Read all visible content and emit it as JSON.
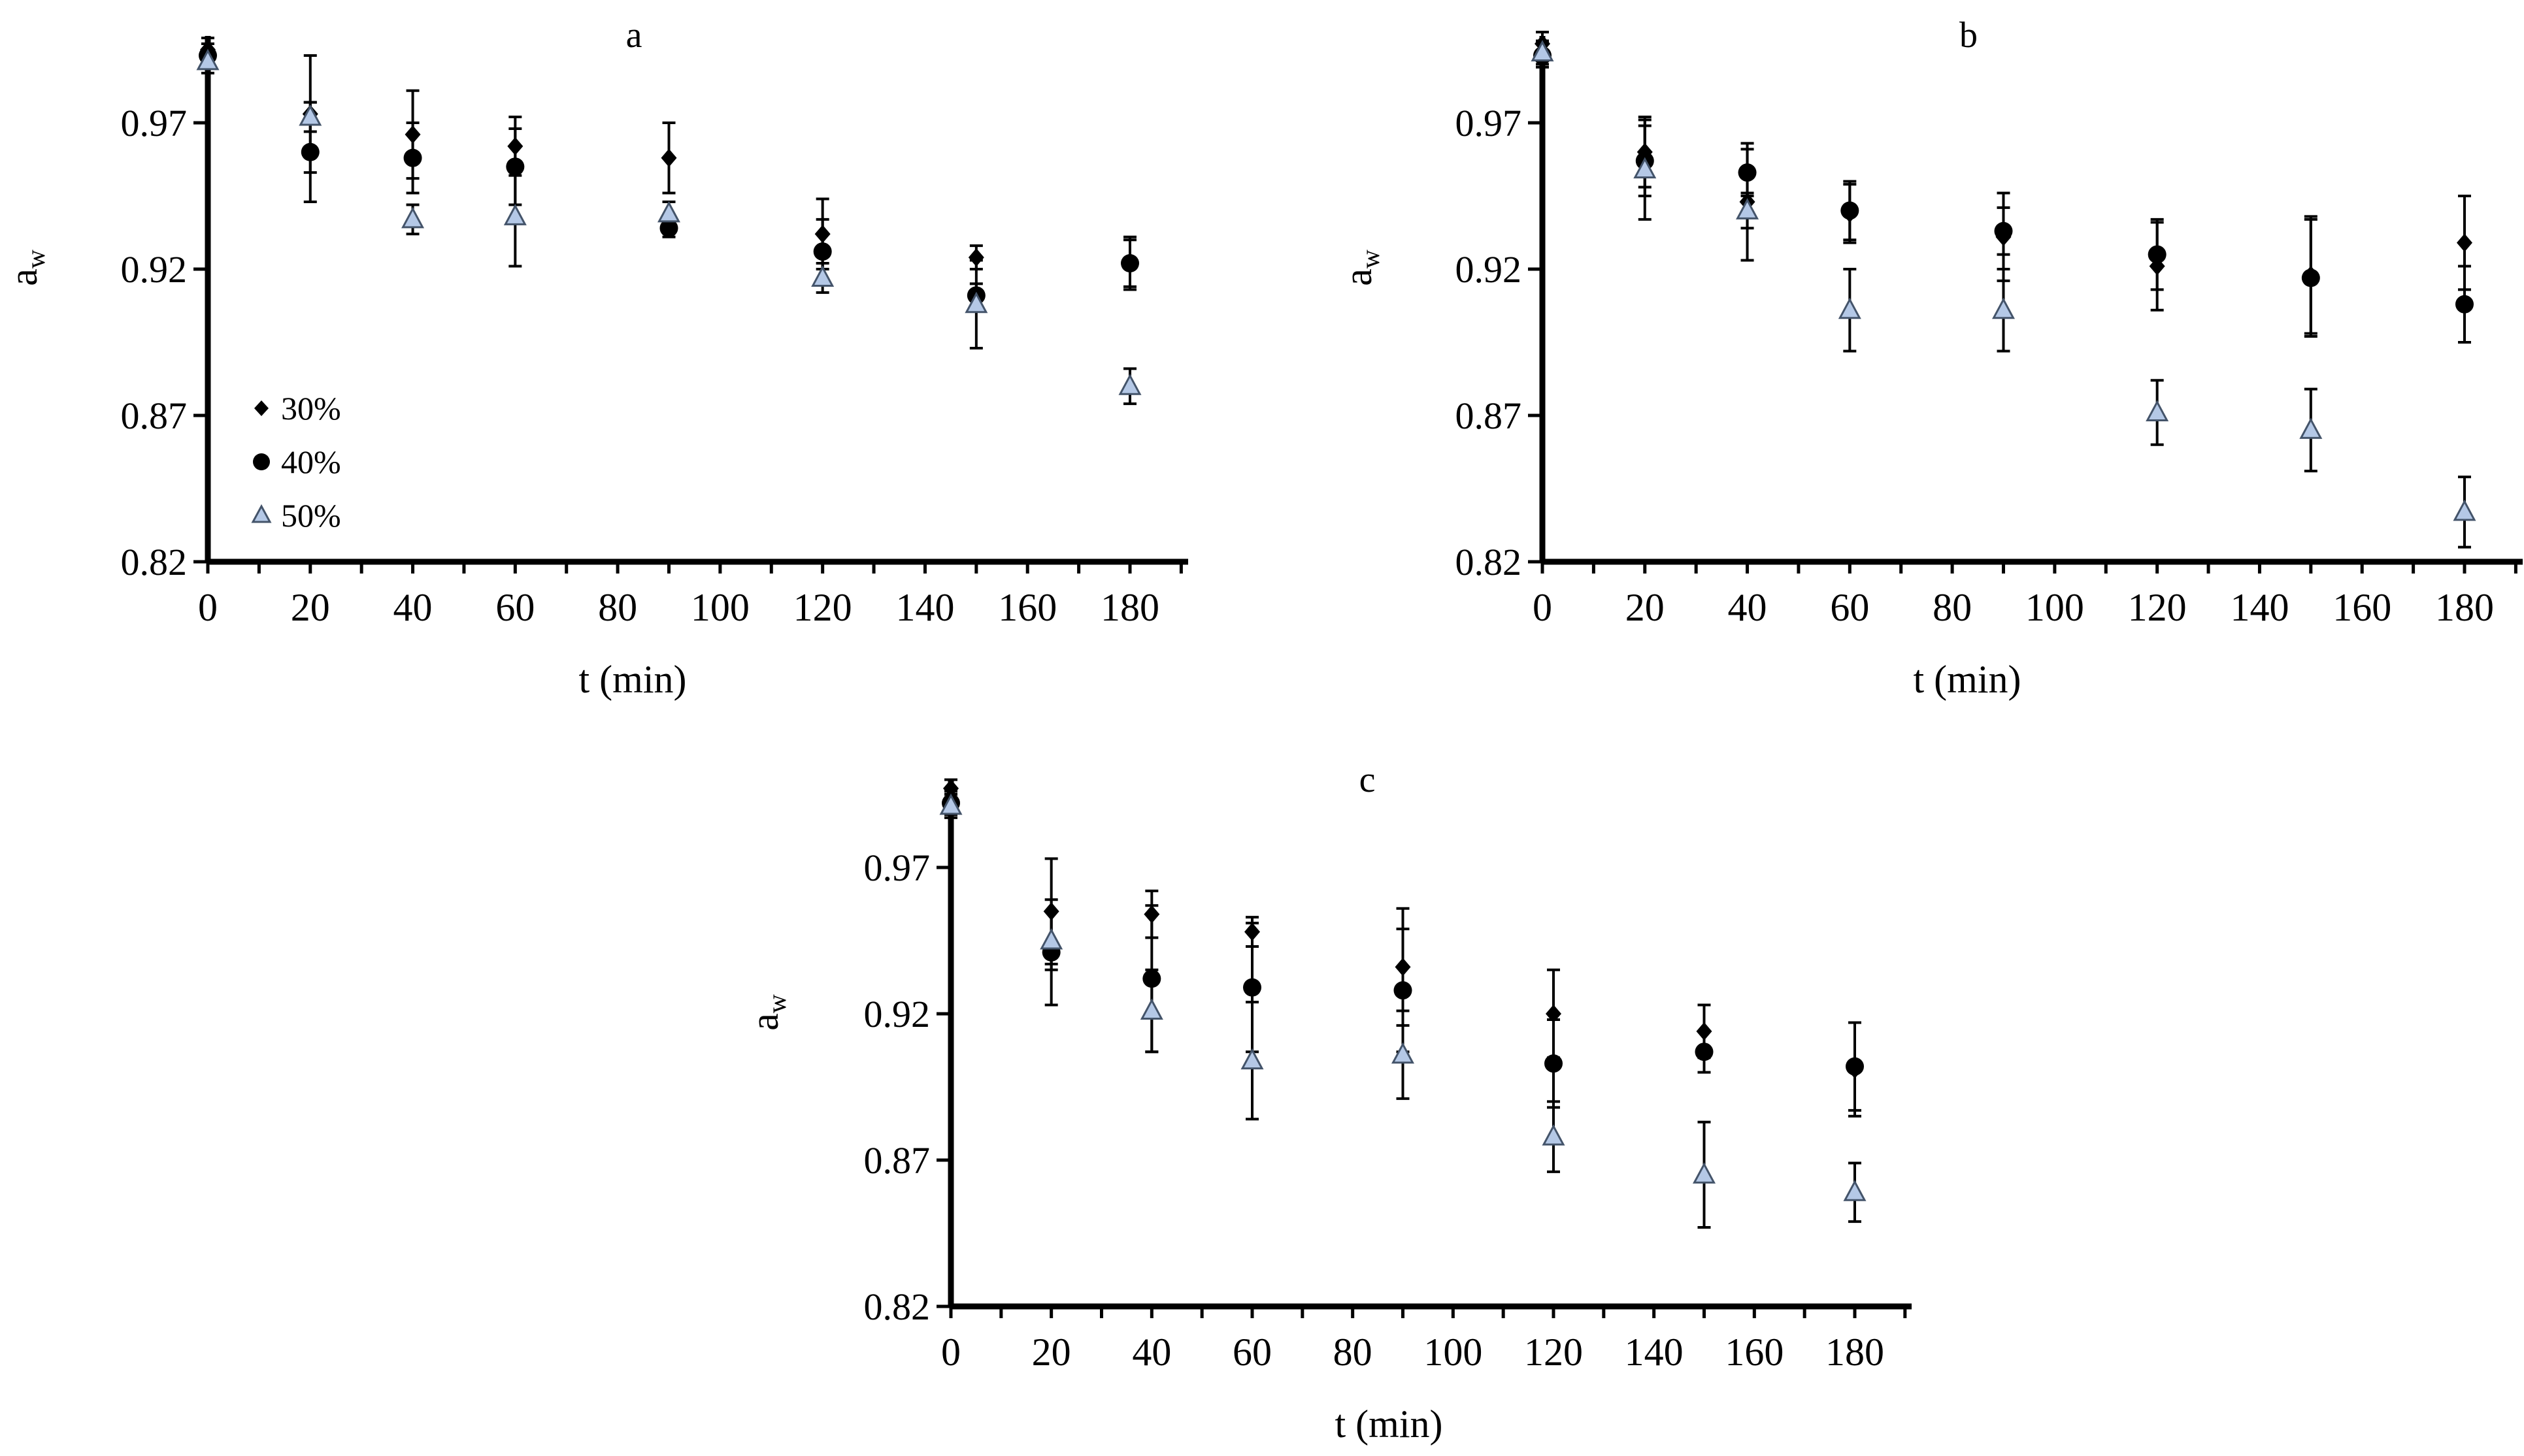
{
  "chart_data": [
    {
      "type": "scatter",
      "title": "a",
      "xlabel": "t (min)",
      "ylabel": "a",
      "ylabel_sub": "w",
      "xlim": [
        0,
        190
      ],
      "ylim": [
        0.82,
        1.0
      ],
      "xticks": [
        0,
        20,
        40,
        60,
        80,
        100,
        120,
        140,
        160,
        180
      ],
      "xtick_labels": [
        "0",
        "20",
        "40",
        "60",
        "80",
        "100",
        "120",
        "140",
        "160",
        "180"
      ],
      "yticks": [
        0.82,
        0.87,
        0.92,
        0.97
      ],
      "ytick_labels": [
        "0.82",
        "0.87",
        "0.92",
        "0.97"
      ],
      "legend": {
        "position": "bottom-left",
        "entries": [
          "30%",
          "40%",
          "50%"
        ]
      },
      "series": [
        {
          "name": "30%",
          "marker": "diamond",
          "x": [
            0,
            20,
            40,
            60,
            90,
            120,
            150,
            180
          ],
          "y": [
            0.995,
            0.973,
            0.966,
            0.962,
            0.958,
            0.932,
            0.924,
            0.922
          ],
          "err": [
            0.004,
            0.02,
            0.015,
            0.01,
            0.012,
            0.012,
            0.004,
            0.009
          ]
        },
        {
          "name": "40%",
          "marker": "circle",
          "x": [
            0,
            20,
            40,
            60,
            90,
            120,
            150,
            180
          ],
          "y": [
            0.993,
            0.96,
            0.958,
            0.955,
            0.934,
            0.926,
            0.911,
            0.922
          ],
          "err": [
            0.004,
            0.017,
            0.012,
            0.013,
            0.003,
            0.011,
            0.004,
            0.008
          ]
        },
        {
          "name": "50%",
          "marker": "triangle",
          "x": [
            0,
            20,
            40,
            60,
            90,
            120,
            150,
            180
          ],
          "y": [
            0.991,
            0.972,
            0.937,
            0.938,
            0.939,
            0.917,
            0.908,
            0.88
          ],
          "err": [
            0.004,
            0.005,
            0.005,
            0.017,
            0.004,
            0.005,
            0.015,
            0.006
          ]
        }
      ]
    },
    {
      "type": "scatter",
      "title": "b",
      "xlabel": "t (min)",
      "ylabel": "a",
      "ylabel_sub": "w",
      "xlim": [
        0,
        190
      ],
      "ylim": [
        0.82,
        1.0
      ],
      "xticks": [
        0,
        20,
        40,
        60,
        80,
        100,
        120,
        140,
        160,
        180
      ],
      "xtick_labels": [
        "0",
        "20",
        "40",
        "60",
        "80",
        "100",
        "120",
        "140",
        "160",
        "180"
      ],
      "yticks": [
        0.82,
        0.87,
        0.92,
        0.97
      ],
      "ytick_labels": [
        "0.82",
        "0.87",
        "0.92",
        "0.97"
      ],
      "series": [
        {
          "name": "30%",
          "marker": "diamond",
          "x": [
            0,
            20,
            40,
            60,
            90,
            120,
            150,
            180
          ],
          "y": [
            0.997,
            0.96,
            0.943,
            0.939,
            0.931,
            0.921,
            0.918,
            0.929
          ],
          "err": [
            0.004,
            0.012,
            0.02,
            0.01,
            0.015,
            0.015,
            0.02,
            0.016
          ]
        },
        {
          "name": "40%",
          "marker": "circle",
          "x": [
            0,
            20,
            40,
            60,
            90,
            120,
            150,
            180
          ],
          "y": [
            0.993,
            0.957,
            0.953,
            0.94,
            0.933,
            0.925,
            0.917,
            0.908
          ],
          "err": [
            0.004,
            0.012,
            0.008,
            0.01,
            0.008,
            0.012,
            0.02,
            0.013
          ]
        },
        {
          "name": "50%",
          "marker": "triangle",
          "x": [
            0,
            20,
            40,
            60,
            90,
            120,
            150,
            180
          ],
          "y": [
            0.994,
            0.954,
            0.94,
            0.906,
            0.906,
            0.871,
            0.865,
            0.837
          ],
          "err": [
            0.004,
            0.017,
            0.006,
            0.014,
            0.014,
            0.011,
            0.014,
            0.012
          ]
        }
      ]
    },
    {
      "type": "scatter",
      "title": "c",
      "xlabel": "t (min)",
      "ylabel": "a",
      "ylabel_sub": "w",
      "xlim": [
        0,
        190
      ],
      "ylim": [
        0.82,
        1.0
      ],
      "xticks": [
        0,
        20,
        40,
        60,
        80,
        100,
        120,
        140,
        160,
        180
      ],
      "xtick_labels": [
        "0",
        "20",
        "40",
        "60",
        "80",
        "100",
        "120",
        "140",
        "160",
        "180"
      ],
      "yticks": [
        0.82,
        0.87,
        0.92,
        0.97
      ],
      "ytick_labels": [
        "0.82",
        "0.87",
        "0.92",
        "0.97"
      ],
      "series": [
        {
          "name": "30%",
          "marker": "diamond",
          "x": [
            0,
            20,
            40,
            60,
            90,
            120,
            150,
            180
          ],
          "y": [
            0.997,
            0.955,
            0.954,
            0.948,
            0.936,
            0.92,
            0.914,
            0.901
          ],
          "err": [
            0.003,
            0.018,
            0.008,
            0.005,
            0.02,
            0.015,
            0.009,
            0.016
          ]
        },
        {
          "name": "40%",
          "marker": "circle",
          "x": [
            0,
            20,
            40,
            60,
            90,
            120,
            150,
            180
          ],
          "y": [
            0.992,
            0.941,
            0.932,
            0.929,
            0.928,
            0.903,
            0.907,
            0.902
          ],
          "err": [
            0.004,
            0.018,
            0.025,
            0.022,
            0.021,
            0.015,
            0.007,
            0.015
          ]
        },
        {
          "name": "50%",
          "marker": "triangle",
          "x": [
            0,
            20,
            40,
            60,
            90,
            120,
            150,
            180
          ],
          "y": [
            0.991,
            0.945,
            0.921,
            0.904,
            0.906,
            0.878,
            0.865,
            0.859
          ],
          "err": [
            0.004,
            0.01,
            0.014,
            0.02,
            0.015,
            0.012,
            0.018,
            0.01
          ]
        }
      ]
    }
  ]
}
